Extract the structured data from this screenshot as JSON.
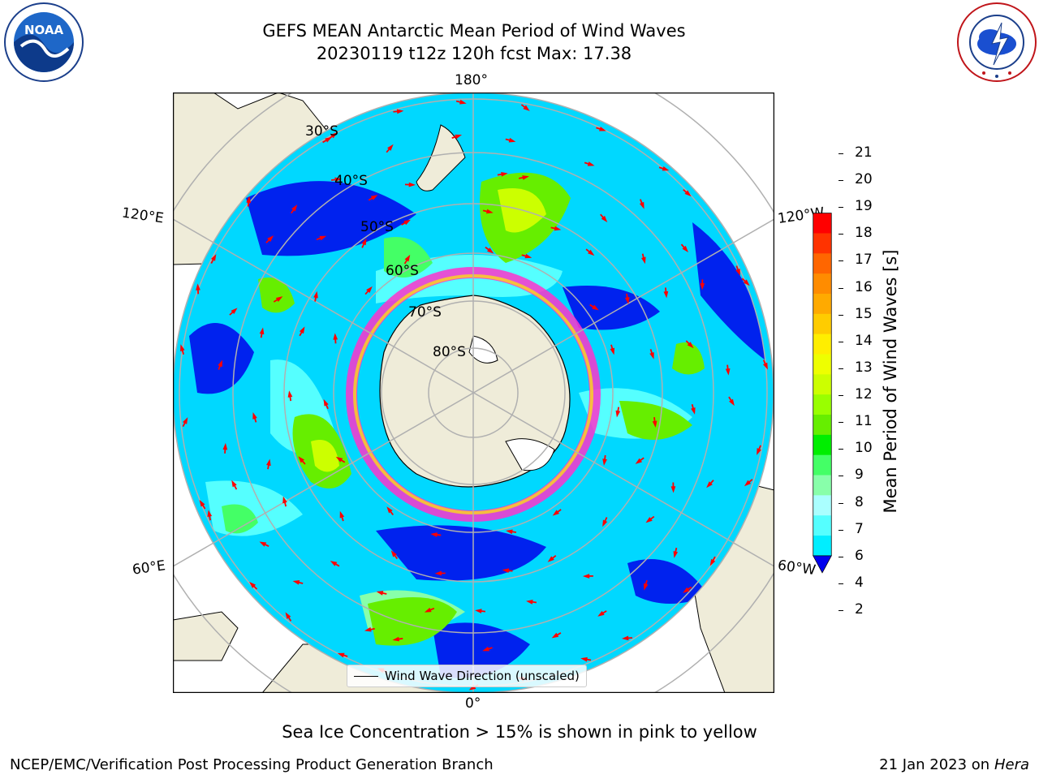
{
  "title_line1": "GEFS MEAN Antarctic Mean Period of Wind Waves",
  "title_line2": "20230119 t12z 120h fcst   Max: 17.38",
  "logos": {
    "noaa_text": "NOAA",
    "noaa_ring": "NATIONAL OCEANIC AND ATMOSPHERIC ADMINISTRATION · U.S. DEPARTMENT OF COMMERCE",
    "nws_ring": "NATIONAL WEATHER SERVICE"
  },
  "map": {
    "projection": "south polar stereographic",
    "longitude_labels": {
      "top": "180°",
      "bottom": "0°",
      "left_upper": "120°E",
      "left_lower": "60°E",
      "right_upper": "120°W",
      "right_lower": "60°W"
    },
    "latitude_labels": [
      "30°S",
      "40°S",
      "50°S",
      "60°S",
      "70°S",
      "80°S"
    ],
    "legend_label": "Wind Wave Direction (unscaled)",
    "colors": {
      "land": "#efecd9",
      "ice": "#ffffff",
      "grid": "#b0b0b0",
      "arrow": "#ff0000",
      "ice_edge": "#ff33cc"
    }
  },
  "colorbar": {
    "label": "Mean Period of Wind Waves [s]",
    "ticks": [
      "21",
      "20",
      "19",
      "18",
      "17",
      "16",
      "15",
      "14",
      "13",
      "12",
      "11",
      "10",
      "9",
      "8",
      "7",
      "6",
      "4",
      "2"
    ],
    "colors_top_to_bottom": [
      "#ff0000",
      "#ff3300",
      "#ff6600",
      "#ff8c00",
      "#ffaa00",
      "#ffcc00",
      "#ffee00",
      "#eeff00",
      "#ccff00",
      "#99ff00",
      "#66ee00",
      "#00ee00",
      "#44ff66",
      "#88ffaa",
      "#aaffff",
      "#55ffff",
      "#00eeff",
      "#0088ff",
      "#0000ee"
    ]
  },
  "caption": "Sea Ice Concentration > 15% is shown in pink to yellow",
  "footer_left": "NCEP/EMC/Verification Post Processing Product Generation Branch",
  "footer_date": "21 Jan 2023 on ",
  "footer_host": "Hera"
}
